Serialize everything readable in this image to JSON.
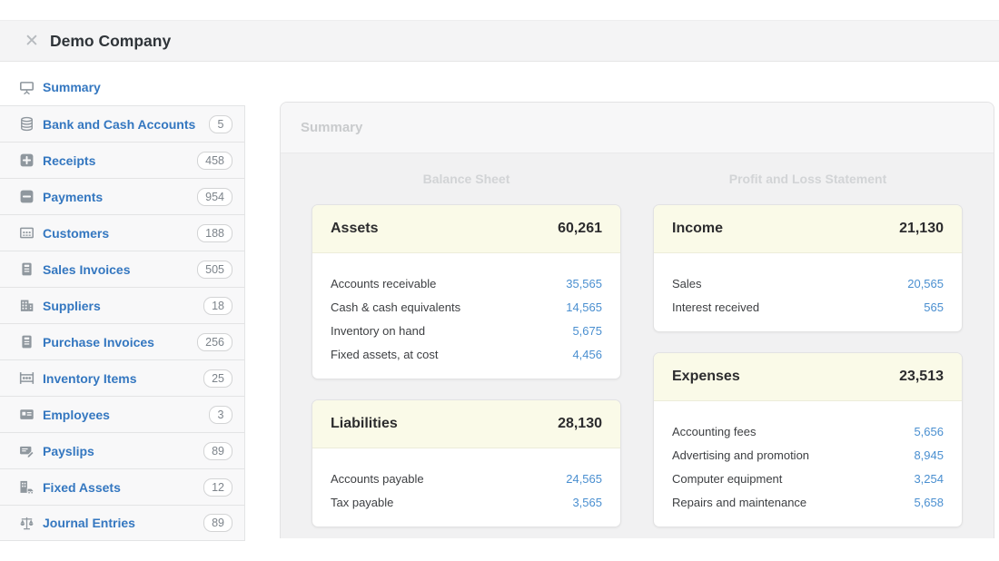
{
  "window": {
    "title": "Demo Company"
  },
  "sidebar": {
    "items": [
      {
        "label": "Summary",
        "count": null,
        "icon": "presentation-icon",
        "active": true
      },
      {
        "label": "Bank and Cash Accounts",
        "count": "5",
        "icon": "coins-icon",
        "active": false
      },
      {
        "label": "Receipts",
        "count": "458",
        "icon": "plus-square-icon",
        "active": false
      },
      {
        "label": "Payments",
        "count": "954",
        "icon": "minus-square-icon",
        "active": false
      },
      {
        "label": "Customers",
        "count": "188",
        "icon": "people-group-icon",
        "active": false
      },
      {
        "label": "Sales Invoices",
        "count": "505",
        "icon": "invoice-icon",
        "active": false
      },
      {
        "label": "Suppliers",
        "count": "18",
        "icon": "factory-icon",
        "active": false
      },
      {
        "label": "Purchase Invoices",
        "count": "256",
        "icon": "invoice-icon",
        "active": false
      },
      {
        "label": "Inventory Items",
        "count": "25",
        "icon": "abacus-icon",
        "active": false
      },
      {
        "label": "Employees",
        "count": "3",
        "icon": "id-card-icon",
        "active": false
      },
      {
        "label": "Payslips",
        "count": "89",
        "icon": "payslip-pen-icon",
        "active": false
      },
      {
        "label": "Fixed Assets",
        "count": "12",
        "icon": "building-truck-icon",
        "active": false
      },
      {
        "label": "Journal Entries",
        "count": "89",
        "icon": "scales-icon",
        "active": false
      }
    ]
  },
  "main": {
    "tab_label": "Summary",
    "columns": [
      {
        "heading": "Balance Sheet",
        "cards": [
          {
            "title": "Assets",
            "total": "60,261",
            "rows": [
              {
                "label": "Accounts receivable",
                "value": "35,565"
              },
              {
                "label": "Cash & cash equivalents",
                "value": "14,565"
              },
              {
                "label": "Inventory on hand",
                "value": "5,675"
              },
              {
                "label": "Fixed assets, at cost",
                "value": "4,456"
              }
            ]
          },
          {
            "title": "Liabilities",
            "total": "28,130",
            "rows": [
              {
                "label": "Accounts payable",
                "value": "24,565"
              },
              {
                "label": "Tax payable",
                "value": "3,565"
              }
            ]
          }
        ]
      },
      {
        "heading": "Profit and Loss Statement",
        "cards": [
          {
            "title": "Income",
            "total": "21,130",
            "rows": [
              {
                "label": "Sales",
                "value": "20,565"
              },
              {
                "label": "Interest received",
                "value": "565"
              }
            ]
          },
          {
            "title": "Expenses",
            "total": "23,513",
            "rows": [
              {
                "label": "Accounting fees",
                "value": "5,656"
              },
              {
                "label": "Advertising and promotion",
                "value": "8,945"
              },
              {
                "label": "Computer equipment",
                "value": "3,254"
              },
              {
                "label": "Repairs and maintenance",
                "value": "5,658"
              }
            ]
          }
        ]
      }
    ]
  },
  "colors": {
    "sidebar_link_blue": "#3477c0",
    "value_link_blue": "#4a8fd0",
    "card_header_cream": "#fafae8",
    "panel_body_gray": "#f1f1f2",
    "titlebar_gray": "#f4f4f5",
    "muted_heading_gray": "#d2d4d6"
  }
}
